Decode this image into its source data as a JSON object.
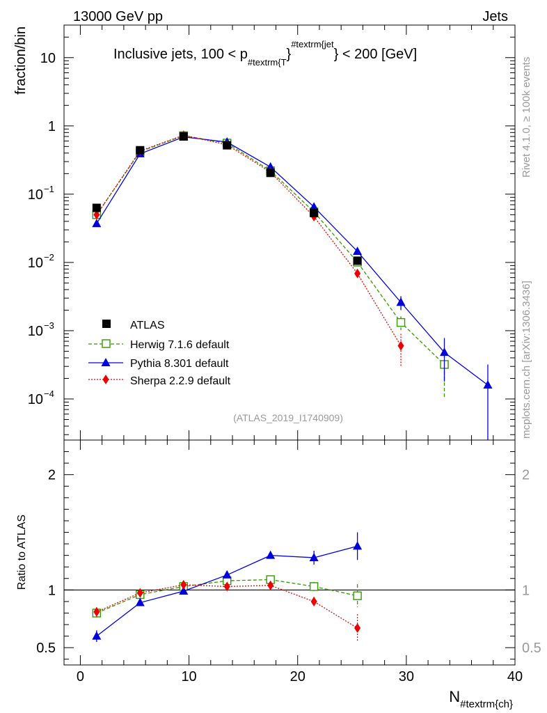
{
  "header": {
    "left_label": "13000 GeV pp",
    "right_label": "Jets"
  },
  "side_labels": {
    "rivet": "Rivet 4.1.0, ≥ 100k events",
    "mcplots": "mcplots.cern.ch [arXiv:1306.3436]"
  },
  "chart_data": [
    {
      "type": "line",
      "title": "Inclusive jets, 100 < p",
      "title_sub": "#textrm{T",
      "title_sup": "#textrm{jet",
      "title_tail": "} < 200 [GeV]",
      "ylabel": "fraction/bin",
      "yscale": "log",
      "ylim": [
        2.5e-05,
        30
      ],
      "xlim": [
        -1.5,
        40
      ],
      "watermark": "(ATLAS_2019_I1740909)",
      "y_ticks": [
        {
          "value": 10,
          "label": "10",
          "exp": ""
        },
        {
          "value": 1,
          "label": "1",
          "exp": ""
        },
        {
          "value": 0.1,
          "label": "10",
          "exp": "−1"
        },
        {
          "value": 0.01,
          "label": "10",
          "exp": "−2"
        },
        {
          "value": 0.001,
          "label": "10",
          "exp": "−3"
        },
        {
          "value": 0.0001,
          "label": "10",
          "exp": "−4"
        }
      ],
      "series": [
        {
          "name": "ATLAS",
          "style": "square",
          "color": "#000000",
          "dash": "",
          "connect": false,
          "x": [
            1.5,
            5.5,
            9.5,
            13.5,
            17.5,
            21.5,
            25.5
          ],
          "y": [
            0.063,
            0.44,
            0.7,
            0.52,
            0.205,
            0.053,
            0.0106
          ],
          "err": [
            0,
            0,
            0,
            0,
            0,
            0,
            0
          ]
        },
        {
          "name": "Herwig 7.1.6 default",
          "style": "open-square",
          "color": "#339900",
          "dash": "5,3",
          "connect": true,
          "x": [
            1.5,
            5.5,
            9.5,
            13.5,
            17.5,
            21.5,
            25.5,
            29.5,
            33.5
          ],
          "y": [
            0.05,
            0.42,
            0.72,
            0.56,
            0.22,
            0.055,
            0.0101,
            0.00132,
            0.00032
          ],
          "err": [
            0,
            0,
            0,
            0,
            0,
            0,
            0.0008,
            0.0003,
            0.00022
          ]
        },
        {
          "name": "Pythia 8.301 default",
          "style": "triangle",
          "color": "#0000dd",
          "dash": "",
          "connect": true,
          "x": [
            1.5,
            5.5,
            9.5,
            13.5,
            17.5,
            21.5,
            25.5,
            29.5,
            33.5,
            37.5
          ],
          "y": [
            0.037,
            0.39,
            0.69,
            0.58,
            0.25,
            0.065,
            0.0145,
            0.0026,
            0.00048,
            0.00016
          ],
          "err": [
            0,
            0,
            0,
            0,
            0,
            0,
            0.0008,
            0.0006,
            0.0003,
            0.00016
          ]
        },
        {
          "name": "Sherpa 2.2.9 default",
          "style": "diamond",
          "color": "#ee0000",
          "dash": "2,2",
          "connect": true,
          "x": [
            1.5,
            5.5,
            9.5,
            13.5,
            17.5,
            21.5,
            25.5,
            29.5
          ],
          "y": [
            0.05,
            0.43,
            0.73,
            0.53,
            0.21,
            0.047,
            0.0069,
            0.0006
          ],
          "err": [
            0,
            0,
            0,
            0,
            0,
            0,
            0.0008,
            0.0003
          ]
        }
      ]
    },
    {
      "type": "line",
      "ylabel": "Ratio to ATLAS",
      "xlabel": "N",
      "xlabel_sub": "#textrm{ch}",
      "ylim": [
        0.35,
        2.3
      ],
      "xlim": [
        -1.5,
        40
      ],
      "x_ticks": [
        0,
        10,
        20,
        30,
        40
      ],
      "y_ticks": [
        0.5,
        1,
        2
      ],
      "series": [
        {
          "name": "Herwig 7.1.6 default",
          "style": "open-square",
          "color": "#339900",
          "dash": "5,3",
          "x": [
            1.5,
            5.5,
            9.5,
            13.5,
            17.5,
            21.5,
            25.5
          ],
          "y": [
            0.8,
            0.96,
            1.03,
            1.08,
            1.09,
            1.03,
            0.95
          ],
          "err": [
            0.04,
            0.015,
            0.01,
            0.01,
            0.015,
            0.04,
            0.1
          ]
        },
        {
          "name": "Pythia 8.301 default",
          "style": "triangle",
          "color": "#0000dd",
          "dash": "",
          "x": [
            1.5,
            5.5,
            9.5,
            13.5,
            17.5,
            21.5,
            25.5
          ],
          "y": [
            0.6,
            0.89,
            0.99,
            1.13,
            1.3,
            1.28,
            1.38
          ],
          "err": [
            0.05,
            0.01,
            0.01,
            0.01,
            0.03,
            0.06,
            0.12
          ]
        },
        {
          "name": "Sherpa 2.2.9 default",
          "style": "diamond",
          "color": "#ee0000",
          "dash": "2,2",
          "x": [
            1.5,
            5.5,
            9.5,
            13.5,
            17.5,
            21.5,
            25.5
          ],
          "y": [
            0.81,
            0.975,
            1.045,
            1.03,
            1.04,
            0.9,
            0.67
          ],
          "err": [
            0.04,
            0.015,
            0.01,
            0.01,
            0.015,
            0.04,
            0.12
          ]
        }
      ]
    }
  ]
}
